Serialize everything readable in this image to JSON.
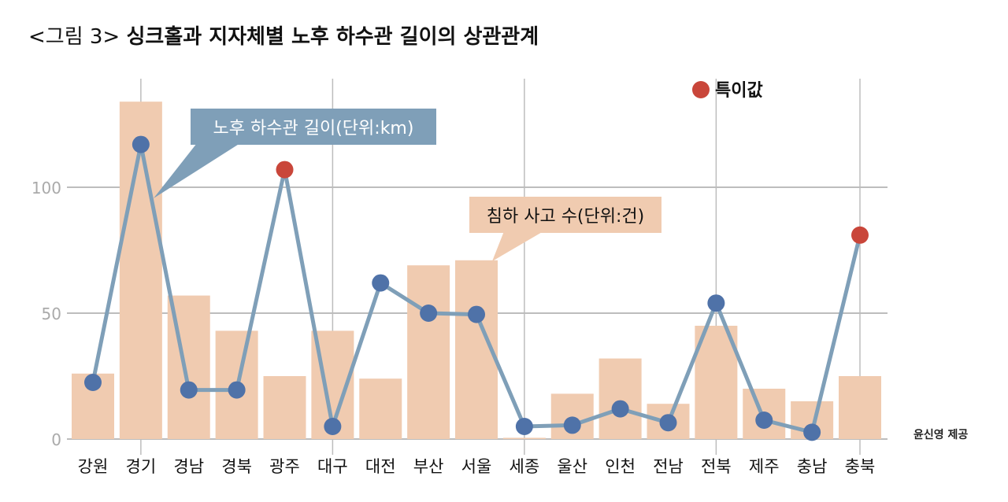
{
  "title_prefix": "<그림 3>",
  "title": "싱크홀과 지자체별 노후 하수관 길이의 상관관계",
  "credit": "윤신영 제공",
  "colors": {
    "bar": "#f0cbb0",
    "line": "#7f9fb8",
    "point": "#4f72a8",
    "outlier": "#c9463a",
    "grid": "#bdbdbd"
  },
  "chart_data": {
    "type": "bar+line",
    "categories": [
      "강원",
      "경기",
      "경남",
      "경북",
      "광주",
      "대구",
      "대전",
      "부산",
      "서울",
      "세종",
      "울산",
      "인천",
      "전남",
      "전북",
      "제주",
      "충남",
      "충북"
    ],
    "ylim": [
      0,
      140
    ],
    "yticks": [
      "0",
      "50",
      "100"
    ],
    "grid": true,
    "series": [
      {
        "name": "침하 사고 수(단위:건)",
        "type": "bar",
        "values": [
          26,
          134,
          57,
          43,
          25,
          43,
          24,
          69,
          71,
          0.5,
          18,
          32,
          14,
          45,
          20,
          15,
          25
        ]
      },
      {
        "name": "노후 하수관 길이(단위:km)",
        "type": "line",
        "values": [
          22.5,
          117,
          19.5,
          19.5,
          107,
          5,
          62,
          50,
          49.5,
          5,
          5.5,
          12,
          6.5,
          54,
          7.5,
          2.7,
          81
        ]
      }
    ],
    "outliers": [
      "광주",
      "충북"
    ],
    "legend": {
      "label": "특이값",
      "position": "top-right"
    }
  }
}
